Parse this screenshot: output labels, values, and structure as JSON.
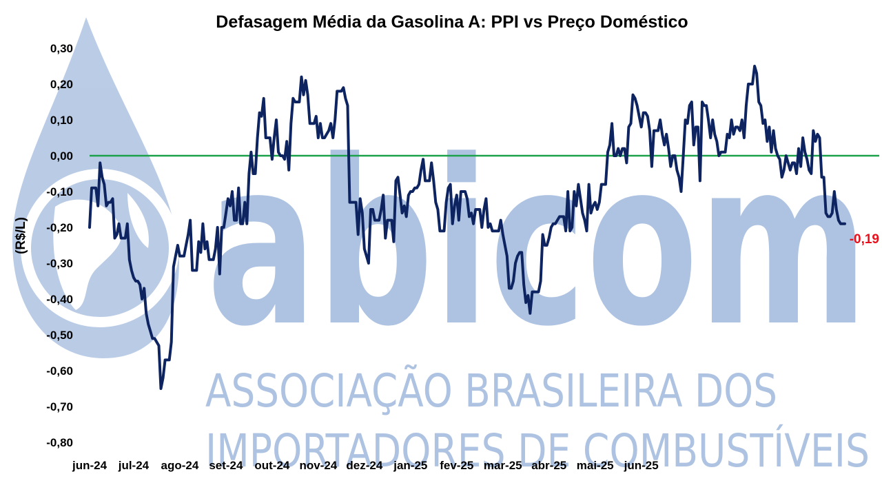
{
  "watermark": {
    "logo_text": "abicom",
    "line1": "ASSOCIAÇÃO BRASILEIRA DOS",
    "line2": "IMPORTADORES DE COMBUSTÍVEIS"
  },
  "chart_data": {
    "type": "line",
    "title": "Defasagem Média da Gasolina A: PPI vs Preço Doméstico",
    "ylabel": "(R$/L)",
    "xlabel": "",
    "ylim": [
      -0.8,
      0.3
    ],
    "yticks": [
      0.3,
      0.2,
      0.1,
      0.0,
      -0.1,
      -0.2,
      -0.3,
      -0.4,
      -0.5,
      -0.6,
      -0.7,
      -0.8
    ],
    "ytick_labels": [
      "0,30",
      "0,20",
      "0,10",
      "0,00",
      "-0,10",
      "-0,20",
      "-0,30",
      "-0,40",
      "-0,50",
      "-0,60",
      "-0,70",
      "-0,80"
    ],
    "x_tick_labels": [
      "jun-24",
      "jul-24",
      "ago-24",
      "set-24",
      "out-24",
      "nov-24",
      "dez-24",
      "jan-25",
      "fev-25",
      "mar-25",
      "abr-25",
      "mai-25",
      "jun-25"
    ],
    "x_tick_index": [
      0,
      21,
      43,
      65,
      87,
      109,
      131,
      153,
      175,
      197,
      219,
      241,
      263
    ],
    "reference_line": {
      "y": 0.0,
      "color": "#1aa14a"
    },
    "line_color": "#0d2461",
    "last_value_label": "-0,19",
    "last_value_color": "#e8101a",
    "grid": false,
    "series": [
      {
        "values": [
          -0.2,
          -0.09,
          -0.09,
          -0.09,
          -0.14,
          -0.02,
          -0.06,
          -0.08,
          -0.14,
          -0.13,
          -0.13,
          -0.12,
          -0.23,
          -0.22,
          -0.19,
          -0.23,
          -0.23,
          -0.23,
          -0.19,
          -0.29,
          -0.32,
          -0.34,
          -0.35,
          -0.35,
          -0.36,
          -0.4,
          -0.37,
          -0.44,
          -0.47,
          -0.49,
          -0.51,
          -0.51,
          -0.52,
          -0.53,
          -0.65,
          -0.62,
          -0.57,
          -0.57,
          -0.57,
          -0.52,
          -0.31,
          -0.28,
          -0.25,
          -0.28,
          -0.28,
          -0.28,
          -0.25,
          -0.22,
          -0.18,
          -0.32,
          -0.32,
          -0.32,
          -0.24,
          -0.27,
          -0.19,
          -0.26,
          -0.24,
          -0.29,
          -0.29,
          -0.29,
          -0.26,
          -0.2,
          -0.33,
          -0.2,
          -0.2,
          -0.16,
          -0.12,
          -0.14,
          -0.1,
          -0.18,
          -0.18,
          -0.09,
          -0.19,
          -0.19,
          -0.13,
          -0.19,
          -0.05,
          0.01,
          -0.05,
          -0.05,
          0.05,
          0.12,
          0.11,
          0.16,
          0.05,
          0.05,
          0.05,
          -0.01,
          0.05,
          0.1,
          0.01,
          0.0,
          0.0,
          -0.01,
          0.04,
          -0.04,
          0.09,
          0.16,
          0.15,
          0.15,
          0.15,
          0.22,
          0.17,
          0.21,
          0.17,
          0.09,
          0.09,
          0.09,
          0.11,
          0.05,
          0.09,
          0.05,
          0.05,
          0.06,
          0.07,
          0.09,
          0.05,
          0.1,
          0.18,
          0.18,
          0.18,
          0.19,
          0.16,
          0.14,
          -0.13,
          -0.13,
          -0.13,
          -0.13,
          -0.22,
          -0.12,
          -0.16,
          -0.26,
          -0.28,
          -0.3,
          -0.15,
          -0.15,
          -0.18,
          -0.18,
          -0.18,
          -0.15,
          -0.11,
          -0.23,
          -0.18,
          -0.18,
          -0.18,
          -0.24,
          -0.07,
          -0.06,
          -0.11,
          -0.16,
          -0.14,
          -0.17,
          -0.11,
          -0.1,
          -0.1,
          -0.09,
          -0.09,
          -0.08,
          -0.04,
          -0.01,
          -0.07,
          -0.07,
          -0.07,
          -0.02,
          -0.07,
          -0.13,
          -0.15,
          -0.21,
          -0.21,
          -0.21,
          -0.13,
          -0.09,
          -0.08,
          -0.19,
          -0.14,
          -0.11,
          -0.18,
          -0.1,
          -0.1,
          -0.1,
          -0.12,
          -0.17,
          -0.16,
          -0.19,
          -0.15,
          -0.15,
          -0.15,
          -0.2,
          -0.15,
          -0.12,
          -0.2,
          -0.19,
          -0.21,
          -0.21,
          -0.21,
          -0.21,
          -0.18,
          -0.22,
          -0.25,
          -0.28,
          -0.37,
          -0.37,
          -0.35,
          -0.3,
          -0.28,
          -0.27,
          -0.27,
          -0.36,
          -0.41,
          -0.39,
          -0.44,
          -0.38,
          -0.38,
          -0.38,
          -0.38,
          -0.35,
          -0.22,
          -0.25,
          -0.25,
          -0.23,
          -0.2,
          -0.19,
          -0.19,
          -0.18,
          -0.17,
          -0.17,
          -0.17,
          -0.21,
          -0.1,
          -0.21,
          -0.2,
          -0.1,
          -0.14,
          -0.08,
          -0.12,
          -0.16,
          -0.18,
          -0.21,
          -0.08,
          -0.16,
          -0.14,
          -0.13,
          -0.15,
          -0.13,
          -0.08,
          -0.08,
          -0.08,
          0.01,
          0.03,
          0.09,
          0.0,
          0.0,
          0.02,
          0.0,
          0.02,
          0.02,
          -0.02,
          0.08,
          0.09,
          0.17,
          0.16,
          0.14,
          0.11,
          0.08,
          0.12,
          0.12,
          0.11,
          0.07,
          -0.03,
          0.07,
          0.07,
          0.07,
          0.1,
          0.06,
          0.03,
          0.06,
          0.02,
          -0.03,
          0.0,
          0.0,
          -0.04,
          -0.06,
          -0.1,
          0.0,
          0.1,
          0.09,
          0.14,
          0.15,
          0.03,
          0.08,
          0.08,
          -0.07,
          0.15,
          0.14,
          0.14,
          0.1,
          0.05,
          0.1,
          0.06,
          0.04,
          0.0,
          0.01,
          0.01,
          0.01,
          0.06,
          0.05,
          0.1,
          0.06,
          0.08,
          0.08,
          0.07,
          0.1,
          0.05,
          0.14,
          0.2,
          0.2,
          0.2,
          0.25,
          0.23,
          0.15,
          0.14,
          0.09,
          0.1,
          0.04,
          0.08,
          0.01,
          0.07,
          0.02,
          0.0,
          -0.01,
          -0.06,
          -0.04,
          0.0,
          -0.02,
          -0.04,
          -0.02,
          -0.02,
          -0.05,
          0.02,
          -0.03,
          0.05,
          0.01,
          -0.01,
          -0.04,
          -0.05,
          0.07,
          0.04,
          0.06,
          0.05,
          -0.06,
          -0.06,
          -0.16,
          -0.17,
          -0.17,
          -0.16,
          -0.1,
          -0.15,
          -0.18,
          -0.19,
          -0.19,
          -0.19
        ]
      }
    ]
  }
}
